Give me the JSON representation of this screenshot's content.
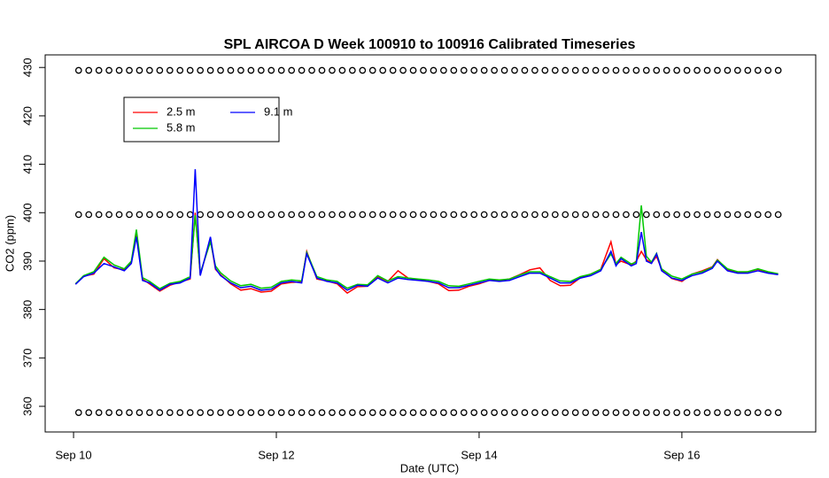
{
  "chart_data": {
    "type": "line",
    "title": "SPL AIRCOA D  Week 100910 to 100916  Calibrated Timeseries",
    "x_label": "Date (UTC)",
    "y_label": "CO2 (ppm)",
    "xlim": [
      9.72,
      17.32
    ],
    "ylim": [
      354.7,
      432.6
    ],
    "xticks": [
      {
        "value": 10,
        "label": "Sep 10"
      },
      {
        "value": 12,
        "label": "Sep 12"
      },
      {
        "value": 14,
        "label": "Sep 14"
      },
      {
        "value": 16,
        "label": "Sep 16"
      }
    ],
    "yticks": [
      360,
      370,
      380,
      390,
      400,
      410,
      420,
      430
    ],
    "legend": "topleft",
    "x": [
      10.02,
      10.1,
      10.2,
      10.3,
      10.4,
      10.5,
      10.57,
      10.62,
      10.68,
      10.75,
      10.85,
      10.95,
      11.05,
      11.15,
      11.2,
      11.25,
      11.35,
      11.4,
      11.45,
      11.55,
      11.65,
      11.75,
      11.85,
      11.95,
      12.05,
      12.15,
      12.25,
      12.3,
      12.4,
      12.5,
      12.6,
      12.7,
      12.8,
      12.9,
      13.0,
      13.1,
      13.2,
      13.3,
      13.4,
      13.5,
      13.6,
      13.7,
      13.8,
      13.9,
      14.0,
      14.1,
      14.2,
      14.3,
      14.4,
      14.5,
      14.6,
      14.7,
      14.8,
      14.9,
      15.0,
      15.1,
      15.2,
      15.3,
      15.35,
      15.4,
      15.5,
      15.55,
      15.6,
      15.65,
      15.7,
      15.75,
      15.8,
      15.9,
      16.0,
      16.1,
      16.2,
      16.3,
      16.35,
      16.45,
      16.55,
      16.65,
      16.75,
      16.85,
      16.95
    ],
    "series": [
      {
        "name": "2.5 m",
        "color": "#ff0000",
        "values": [
          385.3,
          386.9,
          387.3,
          390.5,
          388.6,
          388.2,
          389.8,
          395.5,
          386.3,
          385.3,
          383.8,
          385.0,
          385.7,
          386.3,
          400.0,
          387.2,
          394.5,
          388.3,
          387.2,
          385.3,
          384.0,
          384.3,
          383.6,
          383.8,
          385.3,
          385.6,
          385.7,
          392.0,
          386.3,
          385.9,
          385.3,
          383.4,
          384.7,
          384.8,
          386.8,
          385.8,
          388.0,
          386.5,
          386.2,
          385.8,
          385.3,
          383.9,
          384.0,
          384.8,
          385.3,
          386.0,
          386.0,
          386.3,
          387.2,
          388.2,
          388.6,
          386.0,
          384.9,
          385.0,
          386.6,
          387.3,
          388.3,
          394.0,
          389.3,
          390.0,
          389.2,
          390.0,
          392.0,
          390.3,
          389.6,
          391.0,
          388.3,
          386.4,
          385.8,
          387.3,
          388.0,
          388.8,
          390.3,
          388.2,
          387.6,
          387.8,
          388.3,
          387.7,
          387.3
        ]
      },
      {
        "name": "5.8 m",
        "color": "#00c800",
        "values": [
          385.3,
          387.0,
          387.8,
          390.8,
          389.2,
          388.4,
          390.0,
          396.5,
          386.6,
          385.8,
          384.3,
          385.4,
          385.8,
          386.8,
          399.5,
          387.5,
          394.0,
          389.0,
          387.6,
          385.9,
          384.9,
          385.2,
          384.4,
          384.6,
          385.8,
          386.1,
          385.9,
          391.8,
          386.8,
          386.1,
          385.8,
          384.4,
          385.2,
          385.1,
          387.0,
          385.9,
          386.8,
          386.5,
          386.3,
          386.1,
          385.8,
          384.9,
          384.8,
          385.3,
          385.8,
          386.3,
          386.1,
          386.3,
          387.1,
          387.8,
          387.8,
          386.8,
          385.9,
          385.8,
          386.8,
          387.3,
          388.3,
          391.5,
          389.5,
          390.8,
          389.4,
          389.8,
          401.5,
          391.0,
          389.8,
          391.6,
          388.4,
          386.9,
          386.3,
          387.3,
          387.8,
          388.7,
          390.2,
          388.4,
          387.8,
          387.8,
          388.4,
          387.8,
          387.4
        ]
      },
      {
        "name": "9.1 m",
        "color": "#0000ff",
        "values": [
          385.2,
          386.8,
          387.5,
          389.5,
          388.8,
          388.0,
          389.5,
          395.0,
          386.0,
          385.5,
          384.0,
          385.2,
          385.5,
          386.5,
          409.0,
          387.0,
          395.0,
          388.5,
          387.0,
          385.5,
          384.5,
          384.8,
          384.0,
          384.2,
          385.5,
          385.8,
          385.5,
          391.5,
          386.5,
          385.8,
          385.5,
          384.0,
          385.0,
          384.8,
          386.5,
          385.5,
          386.5,
          386.2,
          386.0,
          385.8,
          385.5,
          384.5,
          384.5,
          385.0,
          385.5,
          386.0,
          385.8,
          386.0,
          386.8,
          387.5,
          387.5,
          386.5,
          385.5,
          385.5,
          386.5,
          387.0,
          388.0,
          392.0,
          389.0,
          390.5,
          389.0,
          389.5,
          396.0,
          390.0,
          389.5,
          391.5,
          388.0,
          386.5,
          386.0,
          387.0,
          387.5,
          388.5,
          390.0,
          388.0,
          387.5,
          387.5,
          388.0,
          387.5,
          387.2
        ]
      }
    ],
    "points_x": [
      10.05,
      10.15,
      10.25,
      10.35,
      10.45,
      10.55,
      10.65,
      10.75,
      10.85,
      10.95,
      11.05,
      11.15,
      11.25,
      11.35,
      11.45,
      11.55,
      11.65,
      11.75,
      11.85,
      11.95,
      12.05,
      12.15,
      12.25,
      12.35,
      12.45,
      12.55,
      12.65,
      12.75,
      12.85,
      12.95,
      13.05,
      13.15,
      13.25,
      13.35,
      13.45,
      13.55,
      13.65,
      13.75,
      13.85,
      13.95,
      14.05,
      14.15,
      14.25,
      14.35,
      14.45,
      14.55,
      14.65,
      14.75,
      14.85,
      14.95,
      15.05,
      15.15,
      15.25,
      15.35,
      15.45,
      15.55,
      15.65,
      15.75,
      15.85,
      15.95,
      16.05,
      16.15,
      16.25,
      16.35,
      16.45,
      16.55,
      16.65,
      16.75,
      16.85,
      16.95
    ],
    "points": [
      {
        "values": [
          429.4,
          429.4,
          429.4,
          429.4,
          429.4,
          429.4,
          429.4,
          429.4,
          429.4,
          429.4,
          429.4,
          429.4,
          429.4,
          429.4,
          429.4,
          429.4,
          429.4,
          429.4,
          429.4,
          429.4,
          429.4,
          429.4,
          429.4,
          429.4,
          429.4,
          429.4,
          429.4,
          429.4,
          429.4,
          429.4,
          429.4,
          429.4,
          429.4,
          429.4,
          429.4,
          429.4,
          429.4,
          429.4,
          429.4,
          429.4,
          429.4,
          429.4,
          429.4,
          429.4,
          429.4,
          429.4,
          429.4,
          429.4,
          429.4,
          429.4,
          429.4,
          429.4,
          429.4,
          429.4,
          429.4,
          429.4,
          429.4,
          429.4,
          429.4,
          429.4,
          429.4,
          429.4,
          429.4,
          429.4,
          429.4,
          429.4,
          429.4,
          429.4,
          429.4,
          429.4
        ]
      },
      {
        "values": [
          399.6,
          399.6,
          399.6,
          399.6,
          399.6,
          399.6,
          399.6,
          399.6,
          399.6,
          399.6,
          399.6,
          399.6,
          399.6,
          399.6,
          399.6,
          399.6,
          399.6,
          399.6,
          399.6,
          399.6,
          399.6,
          399.6,
          399.6,
          399.6,
          399.6,
          399.6,
          399.6,
          399.6,
          399.6,
          399.6,
          399.6,
          399.6,
          399.6,
          399.6,
          399.6,
          399.6,
          399.6,
          399.6,
          399.6,
          399.6,
          399.6,
          399.6,
          399.6,
          399.6,
          399.6,
          399.6,
          399.6,
          399.6,
          399.6,
          399.6,
          399.6,
          399.6,
          399.6,
          399.6,
          399.6,
          399.6,
          399.6,
          399.6,
          399.6,
          399.6,
          399.6,
          399.6,
          399.6,
          399.6,
          399.6,
          399.6,
          399.6,
          399.6,
          399.6,
          399.6
        ]
      },
      {
        "values": [
          358.7,
          358.7,
          358.7,
          358.7,
          358.7,
          358.7,
          358.7,
          358.7,
          358.7,
          358.7,
          358.7,
          358.7,
          358.7,
          358.7,
          358.7,
          358.7,
          358.7,
          358.7,
          358.7,
          358.7,
          358.7,
          358.7,
          358.7,
          358.7,
          358.7,
          358.7,
          358.7,
          358.7,
          358.7,
          358.7,
          358.7,
          358.7,
          358.7,
          358.7,
          358.7,
          358.7,
          358.7,
          358.7,
          358.7,
          358.7,
          358.7,
          358.7,
          358.7,
          358.7,
          358.7,
          358.7,
          358.7,
          358.7,
          358.7,
          358.7,
          358.7,
          358.7,
          358.7,
          358.7,
          358.7,
          358.7,
          358.7,
          358.7,
          358.7,
          358.7,
          358.7,
          358.7,
          358.7,
          358.7,
          358.7,
          358.7,
          358.7,
          358.7,
          358.7,
          358.7
        ]
      }
    ]
  }
}
